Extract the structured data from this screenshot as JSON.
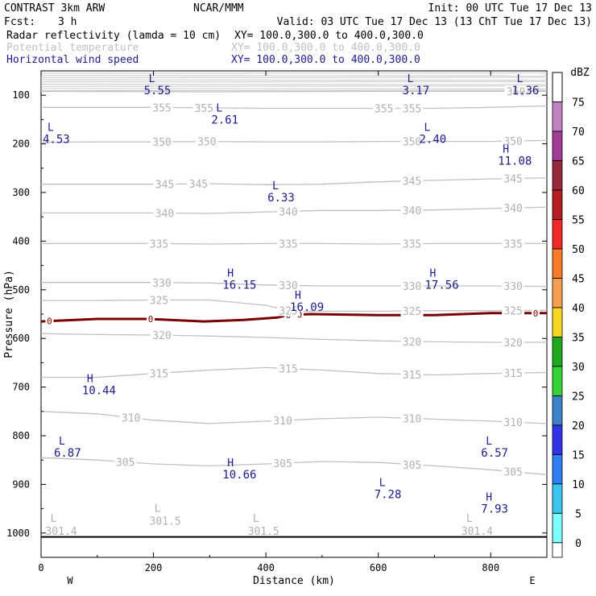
{
  "header": {
    "model": "CONTRAST  3km ARW",
    "org": "NCAR/MMM",
    "init": "Init: 00 UTC Tue 17 Dec 13",
    "fcst_label": "Fcst:",
    "fcst_value": "3 h",
    "valid": "Valid: 03 UTC Tue 17 Dec 13 (13 ChT Tue 17 Dec 13)",
    "fields": [
      {
        "name": "Radar reflectivity (lamda = 10 cm)",
        "xy": "XY= 100.0,300.0 to 400.0,300.0",
        "color": "#000000"
      },
      {
        "name": "Potential temperature",
        "xy": "XY= 100.0,300.0 to 400.0,300.0",
        "color": "#c0c0c0"
      },
      {
        "name": "Horizontal wind speed",
        "xy": "XY= 100.0,300.0 to 400.0,300.0",
        "color": "#1a1a8c"
      }
    ]
  },
  "chart_data": {
    "type": "cross-section contour",
    "xlabel": "Distance (km)",
    "ylabel": "Pressure (hPa)",
    "xlim": [
      0,
      900
    ],
    "ylim_hpa": [
      1050,
      50
    ],
    "x_ticks": [
      0,
      200,
      400,
      600,
      800
    ],
    "y_ticks": [
      100,
      200,
      300,
      400,
      500,
      600,
      700,
      800,
      900,
      1000
    ],
    "x_end_labels": {
      "left": "W",
      "right": "E"
    },
    "surface_hpa": 1008,
    "theta_contours": [
      {
        "value": 305,
        "points": [
          [
            0,
            845
          ],
          [
            100,
            850
          ],
          [
            200,
            858
          ],
          [
            300,
            862
          ],
          [
            400,
            858
          ],
          [
            500,
            853
          ],
          [
            600,
            855
          ],
          [
            700,
            862
          ],
          [
            800,
            870
          ],
          [
            900,
            880
          ]
        ],
        "labels": [
          [
            150,
            "305"
          ],
          [
            430,
            "305"
          ],
          [
            660,
            "305"
          ],
          [
            840,
            "305"
          ]
        ]
      },
      {
        "value": 310,
        "points": [
          [
            0,
            750
          ],
          [
            100,
            755
          ],
          [
            200,
            768
          ],
          [
            300,
            775
          ],
          [
            400,
            770
          ],
          [
            500,
            765
          ],
          [
            600,
            762
          ],
          [
            700,
            766
          ],
          [
            800,
            770
          ],
          [
            900,
            775
          ]
        ],
        "labels": [
          [
            160,
            "310"
          ],
          [
            430,
            "310"
          ],
          [
            660,
            "310"
          ],
          [
            840,
            "310"
          ]
        ]
      },
      {
        "value": 315,
        "points": [
          [
            0,
            680
          ],
          [
            100,
            680
          ],
          [
            200,
            672
          ],
          [
            300,
            665
          ],
          [
            400,
            660
          ],
          [
            500,
            665
          ],
          [
            600,
            672
          ],
          [
            700,
            675
          ],
          [
            800,
            672
          ],
          [
            900,
            670
          ]
        ],
        "labels": [
          [
            210,
            "315"
          ],
          [
            440,
            "315"
          ],
          [
            660,
            "315"
          ],
          [
            840,
            "315"
          ]
        ]
      },
      {
        "value": 320,
        "points": [
          [
            0,
            590
          ],
          [
            100,
            592
          ],
          [
            200,
            593
          ],
          [
            300,
            595
          ],
          [
            400,
            598
          ],
          [
            500,
            602
          ],
          [
            600,
            605
          ],
          [
            700,
            607
          ],
          [
            800,
            608
          ],
          [
            900,
            608
          ]
        ],
        "labels": [
          [
            215,
            "320"
          ],
          [
            660,
            "320"
          ],
          [
            840,
            "320"
          ]
        ]
      },
      {
        "value": 325,
        "points": [
          [
            0,
            522
          ],
          [
            100,
            522
          ],
          [
            200,
            521
          ],
          [
            300,
            521
          ],
          [
            400,
            532
          ],
          [
            450,
            545
          ],
          [
            500,
            544
          ],
          [
            600,
            544
          ],
          [
            700,
            543
          ],
          [
            800,
            543
          ],
          [
            900,
            542
          ]
        ],
        "labels": [
          [
            210,
            "325"
          ],
          [
            440,
            "325"
          ],
          [
            660,
            "325"
          ],
          [
            840,
            "325"
          ]
        ]
      },
      {
        "value": 330,
        "points": [
          [
            0,
            485
          ],
          [
            100,
            485
          ],
          [
            200,
            485
          ],
          [
            300,
            486
          ],
          [
            400,
            490
          ],
          [
            500,
            492
          ],
          [
            600,
            492
          ],
          [
            700,
            492
          ],
          [
            800,
            492
          ],
          [
            900,
            493
          ]
        ],
        "labels": [
          [
            215,
            "330"
          ],
          [
            440,
            "330"
          ],
          [
            660,
            "330"
          ],
          [
            840,
            "330"
          ]
        ]
      },
      {
        "value": 335,
        "points": [
          [
            0,
            405
          ],
          [
            100,
            405
          ],
          [
            200,
            405
          ],
          [
            300,
            406
          ],
          [
            400,
            405
          ],
          [
            500,
            405
          ],
          [
            600,
            406
          ],
          [
            700,
            405
          ],
          [
            800,
            405
          ],
          [
            900,
            405
          ]
        ],
        "labels": [
          [
            210,
            "335"
          ],
          [
            440,
            "335"
          ],
          [
            660,
            "335"
          ],
          [
            840,
            "335"
          ]
        ]
      },
      {
        "value": 340,
        "points": [
          [
            0,
            342
          ],
          [
            100,
            342
          ],
          [
            200,
            342
          ],
          [
            300,
            343
          ],
          [
            400,
            340
          ],
          [
            500,
            337
          ],
          [
            600,
            337
          ],
          [
            700,
            336
          ],
          [
            800,
            333
          ],
          [
            900,
            330
          ]
        ],
        "labels": [
          [
            220,
            "340"
          ],
          [
            440,
            "340"
          ],
          [
            660,
            "340"
          ],
          [
            840,
            "340"
          ]
        ]
      },
      {
        "value": 345,
        "points": [
          [
            0,
            283
          ],
          [
            100,
            283
          ],
          [
            200,
            283
          ],
          [
            300,
            282
          ],
          [
            400,
            284
          ],
          [
            500,
            283
          ],
          [
            600,
            278
          ],
          [
            700,
            275
          ],
          [
            800,
            272
          ],
          [
            900,
            270
          ]
        ],
        "labels": [
          [
            220,
            "345"
          ],
          [
            280,
            "345"
          ],
          [
            660,
            "345"
          ],
          [
            840,
            "345"
          ]
        ]
      },
      {
        "value": 350,
        "points": [
          [
            0,
            197
          ],
          [
            100,
            196
          ],
          [
            200,
            196
          ],
          [
            300,
            195
          ],
          [
            400,
            196
          ],
          [
            500,
            196
          ],
          [
            600,
            195
          ],
          [
            700,
            195
          ],
          [
            800,
            195
          ],
          [
            900,
            193
          ]
        ],
        "labels": [
          [
            215,
            "350"
          ],
          [
            295,
            "350"
          ],
          [
            660,
            "350"
          ],
          [
            840,
            "350"
          ]
        ]
      },
      {
        "value": 355,
        "points": [
          [
            0,
            125
          ],
          [
            100,
            125
          ],
          [
            200,
            125
          ],
          [
            300,
            126
          ],
          [
            400,
            127
          ],
          [
            500,
            127
          ],
          [
            600,
            127
          ],
          [
            700,
            127
          ],
          [
            800,
            125
          ],
          [
            900,
            122
          ]
        ],
        "labels": [
          [
            215,
            "355"
          ],
          [
            290,
            "355"
          ],
          [
            610,
            "355"
          ],
          [
            660,
            "355"
          ]
        ]
      },
      {
        "value": 360,
        "points": [
          [
            0,
            92
          ],
          [
            300,
            93
          ],
          [
            600,
            92
          ],
          [
            800,
            92
          ],
          [
            900,
            92
          ]
        ],
        "labels": [
          [
            845,
            "360"
          ]
        ]
      }
    ],
    "theta_extrema": [
      {
        "type": "L",
        "value": "301.4",
        "x": 5,
        "p": 1000
      },
      {
        "type": "L",
        "value": "301.5",
        "x": 190,
        "p": 980
      },
      {
        "type": "L",
        "value": "301.5",
        "x": 365,
        "p": 1000
      },
      {
        "type": "L",
        "value": "301.4",
        "x": 745,
        "p": 1000
      }
    ],
    "reflectivity_zero_contour": {
      "value": "0",
      "points": [
        [
          0,
          565
        ],
        [
          100,
          560
        ],
        [
          190,
          560
        ],
        [
          290,
          565
        ],
        [
          360,
          562
        ],
        [
          420,
          557
        ],
        [
          440,
          552
        ],
        [
          480,
          550
        ],
        [
          600,
          552
        ],
        [
          700,
          552
        ],
        [
          800,
          548
        ],
        [
          880,
          548
        ],
        [
          900,
          548
        ]
      ],
      "labels": [
        [
          15,
          "0"
        ],
        [
          195,
          "0"
        ],
        [
          440,
          "0"
        ],
        [
          460,
          "0"
        ],
        [
          880,
          "0"
        ]
      ]
    },
    "wind_extrema": [
      {
        "type": "L",
        "value": "5.55",
        "x": 180,
        "p": 55
      },
      {
        "type": "L",
        "value": "3.17",
        "x": 640,
        "p": 55
      },
      {
        "type": "L",
        "value": "1.36",
        "x": 835,
        "p": 55
      },
      {
        "type": "L",
        "value": "2.61",
        "x": 300,
        "p": 115
      },
      {
        "type": "L",
        "value": "4.53",
        "x": 0,
        "p": 155
      },
      {
        "type": "L",
        "value": "2.40",
        "x": 670,
        "p": 155
      },
      {
        "type": "H",
        "value": "11.08",
        "x": 810,
        "p": 200
      },
      {
        "type": "L",
        "value": "6.33",
        "x": 400,
        "p": 275
      },
      {
        "type": "H",
        "value": "16.15",
        "x": 320,
        "p": 455
      },
      {
        "type": "H",
        "value": "17.56",
        "x": 680,
        "p": 455
      },
      {
        "type": "H",
        "value": "16.09",
        "x": 440,
        "p": 500
      },
      {
        "type": "H",
        "value": "10.44",
        "x": 70,
        "p": 672
      },
      {
        "type": "L",
        "value": "6.87",
        "x": 20,
        "p": 800
      },
      {
        "type": "L",
        "value": "6.57",
        "x": 780,
        "p": 800
      },
      {
        "type": "H",
        "value": "10.66",
        "x": 320,
        "p": 845
      },
      {
        "type": "L",
        "value": "7.28",
        "x": 590,
        "p": 885
      },
      {
        "type": "H",
        "value": "7.93",
        "x": 780,
        "p": 915
      }
    ]
  },
  "colorbar": {
    "unit": "dBZ",
    "levels": [
      {
        "label": "0",
        "color": "#ffffff"
      },
      {
        "label": "5",
        "color": "#7ffcfc"
      },
      {
        "label": "10",
        "color": "#3cc6f0"
      },
      {
        "label": "15",
        "color": "#2f7df0"
      },
      {
        "label": "20",
        "color": "#3232e6"
      },
      {
        "label": "25",
        "color": "#3c82c8"
      },
      {
        "label": "30",
        "color": "#36d236"
      },
      {
        "label": "35",
        "color": "#1eaa1e"
      },
      {
        "label": "40",
        "color": "#f8d61e"
      },
      {
        "label": "45",
        "color": "#f4a050"
      },
      {
        "label": "50",
        "color": "#f87a2a"
      },
      {
        "label": "55",
        "color": "#f02828"
      },
      {
        "label": "60",
        "color": "#b41e1e"
      },
      {
        "label": "65",
        "color": "#96283c"
      },
      {
        "label": "70",
        "color": "#a03c96"
      },
      {
        "label": "75",
        "color": "#c082c0"
      }
    ]
  },
  "colors": {
    "theta": "#c0c0c0",
    "wind": "#1a1a8c",
    "zero_contour": "#780000"
  }
}
